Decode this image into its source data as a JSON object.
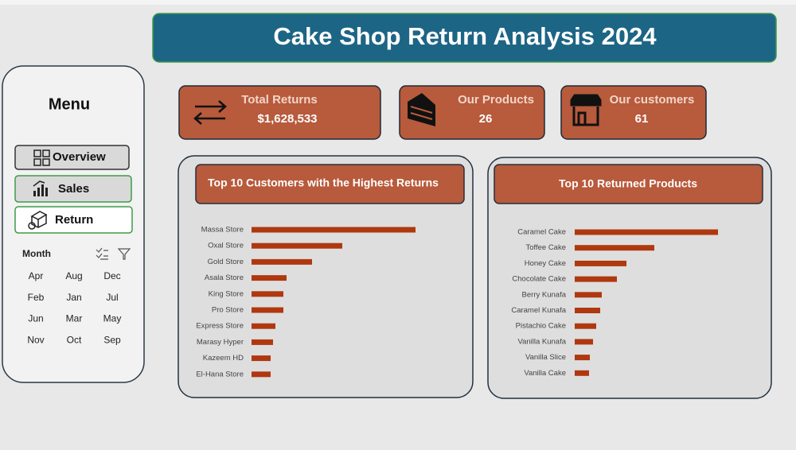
{
  "header": {
    "title": "Cake Shop Return Analysis 2024"
  },
  "menu": {
    "title": "Menu",
    "buttons": [
      "Overview",
      "Sales",
      "Return"
    ],
    "filter": {
      "title": "Month",
      "items": [
        "Apr",
        "Aug",
        "Dec",
        "Feb",
        "Jan",
        "Jul",
        "Jun",
        "Mar",
        "May",
        "Nov",
        "Oct",
        "Sep"
      ]
    }
  },
  "kpis": [
    {
      "label": "Total Returns",
      "value": "$1,628,533"
    },
    {
      "label": "Our Products",
      "value": "26"
    },
    {
      "label": "Our customers",
      "value": "61"
    }
  ],
  "chart_data": [
    {
      "type": "bar",
      "orientation": "horizontal",
      "title": "Top 10 Customers with the Highest Returns",
      "color": "#b0380f",
      "categories": [
        "Massa Store",
        "Oxal Store",
        "Gold Store",
        "Asala Store",
        "King Store",
        "Pro Store",
        "Express Store",
        "Marasy Hyper",
        "Kazeem HD",
        "El-Hana Store"
      ],
      "values": [
        206,
        114,
        76,
        44,
        40,
        40,
        30,
        27,
        24,
        24
      ]
    },
    {
      "type": "bar",
      "orientation": "horizontal",
      "title": "Top 10 Returned  Products",
      "color": "#b0380f",
      "categories": [
        "Caramel Cake",
        "Toffee Cake",
        "Honey Cake",
        "Chocolate Cake",
        "Berry Kunafa",
        "Caramel Kunafa",
        "Pistachio Cake",
        "Vanilla Kunafa",
        "Vanilla Slice",
        "Vanilla Cake"
      ],
      "values": [
        180,
        100,
        65,
        53,
        34,
        32,
        27,
        23,
        19,
        18
      ]
    }
  ]
}
